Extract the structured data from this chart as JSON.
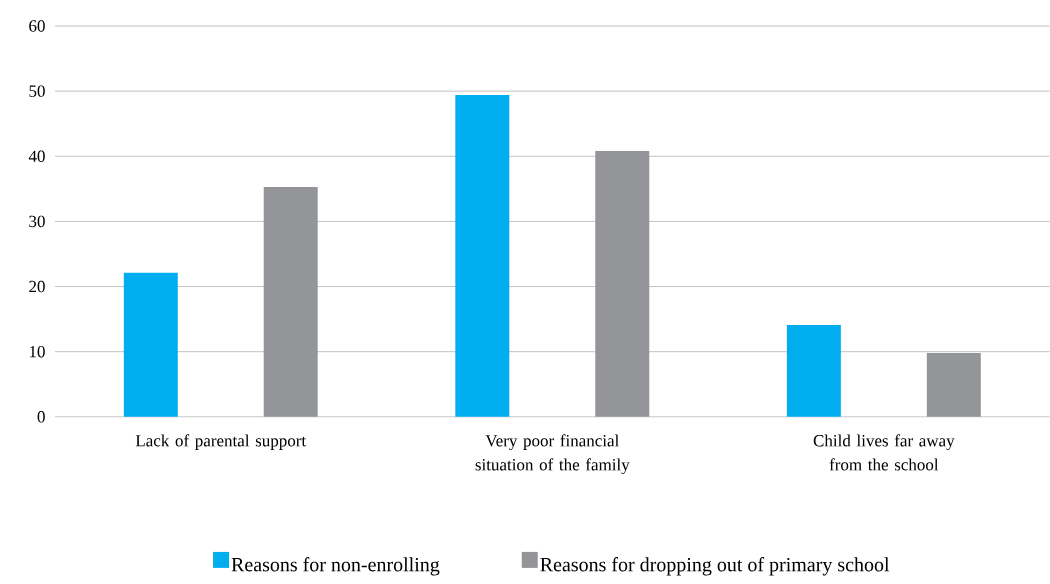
{
  "chart_data": {
    "type": "bar",
    "categories": [
      "Lack of parental support",
      "Very poor financial situation of the family",
      "Child lives far away from the school"
    ],
    "series": [
      {
        "name": "Reasons for non-enrolling",
        "color": "#00aeef",
        "values": [
          22.1,
          49.4,
          14.1
        ]
      },
      {
        "name": "Reasons for dropping out of primary school",
        "color": "#939598",
        "values": [
          35.3,
          40.8,
          9.8
        ]
      }
    ],
    "ylim": [
      0,
      60
    ],
    "yticks": [
      0,
      10,
      20,
      30,
      40,
      50,
      60
    ],
    "grid": "y",
    "legend": "bottom"
  }
}
